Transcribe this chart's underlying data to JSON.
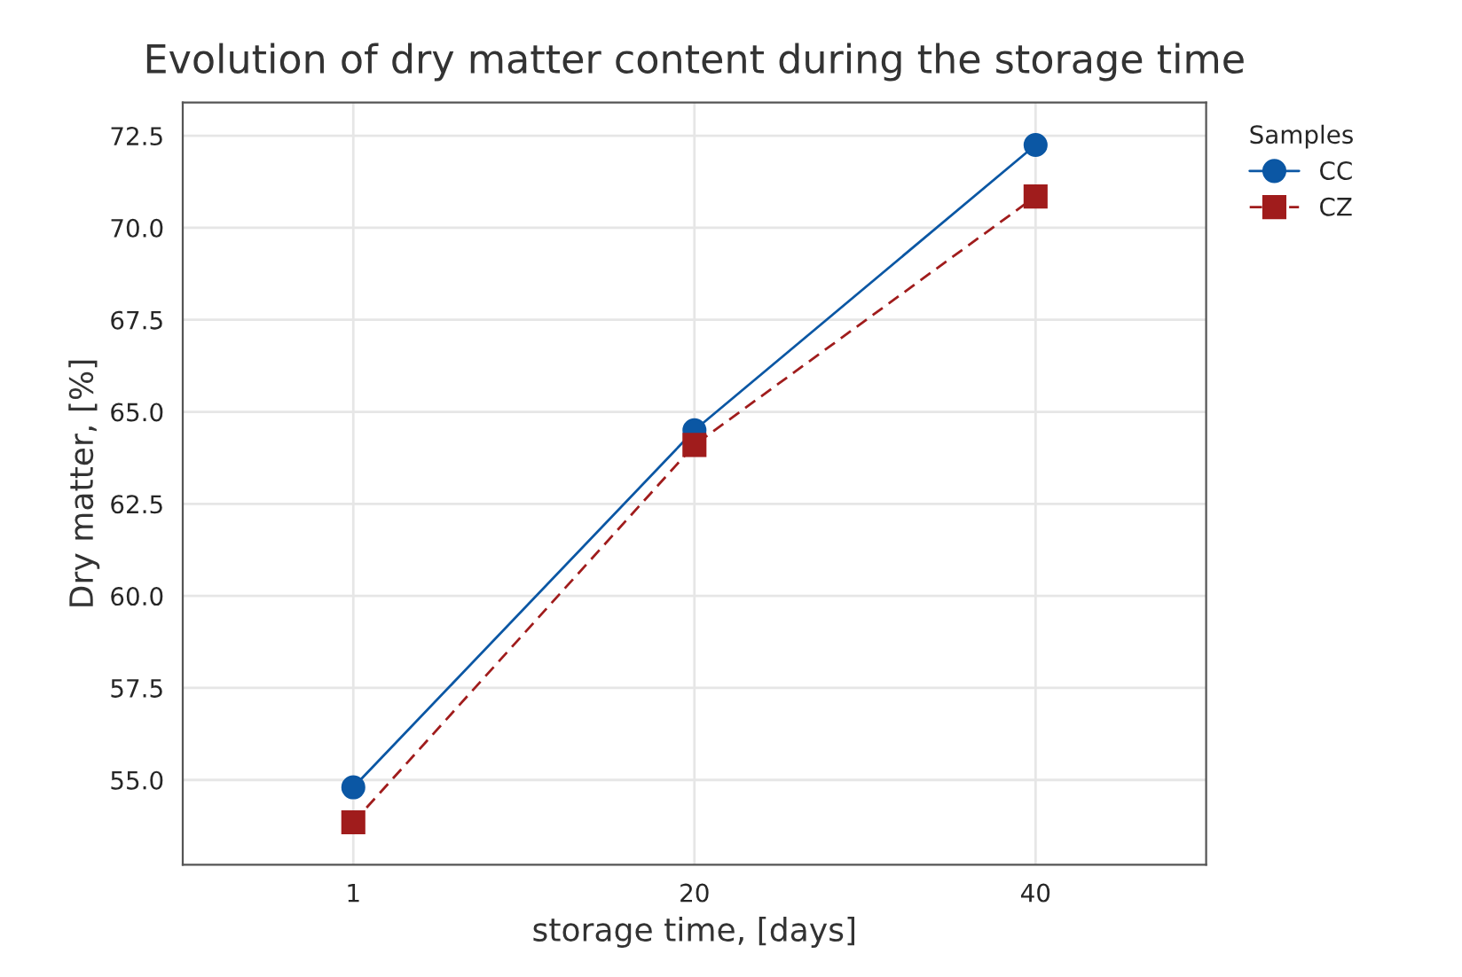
{
  "chart_data": {
    "type": "line",
    "title": "Evolution of dry matter content during the storage time",
    "xlabel": "storage time, [days]",
    "ylabel": "Dry matter, [%]",
    "legend_title": "Samples",
    "categories": [
      "1",
      "20",
      "40"
    ],
    "series": [
      {
        "name": "CC",
        "color": "#0b57a4",
        "values": [
          54.8,
          64.5,
          72.25
        ],
        "marker": "circle",
        "line_style": "solid"
      },
      {
        "name": "CZ",
        "color": "#a01c1c",
        "values": [
          53.85,
          64.1,
          70.85
        ],
        "marker": "square",
        "line_style": "dashed"
      }
    ],
    "ylim": [
      52.7,
      73.4
    ],
    "yticks": [
      {
        "value": 55,
        "label": "55.0"
      },
      {
        "value": 57.5,
        "label": "57.5"
      },
      {
        "value": 60,
        "label": "60.0"
      },
      {
        "value": 62.5,
        "label": "62.5"
      },
      {
        "value": 65,
        "label": "65.0"
      },
      {
        "value": 67.5,
        "label": "67.5"
      },
      {
        "value": 70,
        "label": "70.0"
      },
      {
        "value": 72.5,
        "label": "72.5"
      }
    ],
    "grid": true,
    "legend": "top right"
  }
}
